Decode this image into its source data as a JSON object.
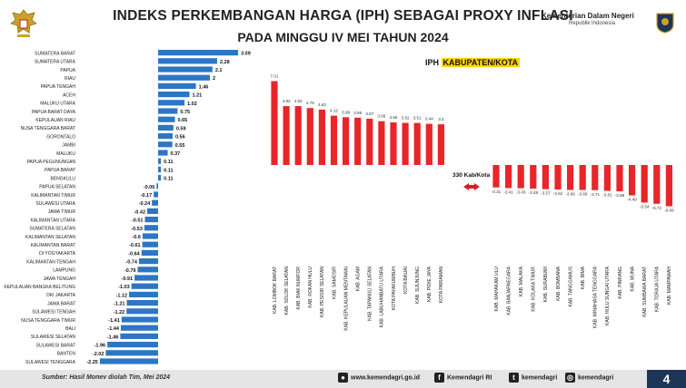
{
  "header": {
    "title_line1": "INDEKS PERKEMBANGAN HARGA (IPH) SEBAGAI PROXY INFLASI",
    "title_line2": "PADA MINGGU IV MEI TAHUN 2024",
    "org_name": "Kementerian Dalam Negeri",
    "org_sub": "Republik Indonesia"
  },
  "footer": {
    "source": "Sumber: Hasil Monev diolah Tim, Mei 2024",
    "website": "www.kemendagri.go.id",
    "facebook": "Kemendagri RI",
    "twitter": "kemendagri",
    "instagram": "kemendagri",
    "page_number": "4"
  },
  "colors": {
    "province_bar": "#2e75c4",
    "kabkota_bar": "#e8262a",
    "highlight": "#ffd500",
    "page_badge": "#1d3557"
  },
  "chart_data": [
    {
      "type": "bar",
      "orientation": "horizontal",
      "categories": [
        "SUMATERA BARAT",
        "SUMATERA UTARA",
        "PAPUA",
        "RIAU",
        "PAPUA TENGAH",
        "ACEH",
        "MALUKU UTARA",
        "PAPUA BARAT DAYA",
        "KEPULAUAN RIAU",
        "NUSA TENGGARA BARAT",
        "GORONTALO",
        "JAMBI",
        "MALUKU",
        "PAPUA PEGUNUNGAN",
        "PAPUA BARAT",
        "BENGKULU",
        "PAPUA SELATAN",
        "KALIMANTAN TIMUR",
        "SULAWESI UTARA",
        "JAWA TIMUR",
        "KALIMANTAN UTARA",
        "SUMATERA SELATAN",
        "KALIMANTAN SELATAN",
        "KALIMANTAN BARAT",
        "DI YOGYAKARTA",
        "KALIMANTAN TENGAH",
        "LAMPUNG",
        "JAWA TENGAH",
        "KEPULAUAN BANGKA BELITUNG",
        "DKI JAKARTA",
        "JAWA BARAT",
        "SULAWESI TENGAH",
        "NUSA TENGGARA TIMUR",
        "BALI",
        "SULAWESI SELATAN",
        "SULAWESI BARAT",
        "BANTEN",
        "SULAWESI TENGGARA"
      ],
      "values": [
        3.09,
        2.28,
        2.1,
        2,
        1.46,
        1.21,
        1.02,
        0.75,
        0.65,
        0.59,
        0.56,
        0.55,
        0.37,
        0.11,
        0.11,
        0.11,
        -0.06,
        -0.17,
        -0.24,
        -0.42,
        -0.51,
        -0.53,
        -0.6,
        -0.61,
        -0.64,
        -0.74,
        -0.79,
        -0.91,
        -1.03,
        -1.12,
        -1.21,
        -1.22,
        -1.41,
        -1.44,
        -1.46,
        -1.96,
        -2.02,
        -2.25
      ],
      "labels": [
        "3.09",
        "2.28",
        "2.1",
        "2",
        "1.46",
        "1.21",
        "1.02",
        "0.75",
        "0.65",
        "0.59",
        "0.56",
        "0.55",
        "0.37",
        "0.11",
        "0.11",
        "0.11",
        "-0.06",
        "-0.17",
        "-0.24",
        "-0.42",
        "-0.51",
        "-0.53",
        "-0.6",
        "-0.61",
        "-0.64",
        "-0.74",
        "-0.79",
        "-0.91",
        "-1.03",
        "-1.12",
        "-1.21",
        "-1.22",
        "-1.41",
        "-1.44",
        "-1.46",
        "-1.96",
        "-2.02",
        "-2.25"
      ],
      "grid": false
    },
    {
      "type": "bar",
      "title": "IPH",
      "title_highlight": "KABUPATEN/KOTA",
      "break_label": "330 Kab/Kota",
      "categories": [
        "KAB. LOMBOK BARAT",
        "KAB. SOLOK SELATAN",
        "KAB. BIAK NUMFOR",
        "KAB. ROKAN HULU",
        "KAB. PESISIR SELATAN",
        "KAB. SAMOSIR",
        "KAB. KEPULAUAN MENTAWAI",
        "KAB. AGAM",
        "KAB. TAPANULI SELATAN",
        "KAB. LABUHANBATU UTARA",
        "KOTA PAYAKUMBUH",
        "KOTA BINJAI",
        "KAB. SIJUNJUNG",
        "KAB. PIDIE JAYA",
        "KOTA PARIAMAN",
        "KAB. MAHAKAM ULU",
        "KAB. BANJARNEGARA",
        "KAB. MALAKA",
        "KAB. KOLAKA TIMUR",
        "KAB. SURABUMI",
        "KAB. BOMBANA",
        "KAB. TANGGAMUS",
        "KAB. BIMA",
        "KAB. MINAHASA TENGGARA",
        "KAB. HULU SUNGAI UTARA",
        "KAB. PINRANG",
        "KAB. MUNA",
        "KAB. SUMBAWA BARAT",
        "KAB. TORAJA UTARA",
        "KAB. MAMPAWAH"
      ],
      "values": [
        7.01,
        4.92,
        4.92,
        4.76,
        4.63,
        4.12,
        3.99,
        3.95,
        3.87,
        3.66,
        3.56,
        3.52,
        3.51,
        3.44,
        3.4,
        -3.31,
        -3.41,
        -3.43,
        -3.48,
        -3.57,
        -3.62,
        -3.68,
        -3.68,
        -3.71,
        -3.81,
        -3.88,
        -4.49,
        -5.54,
        -5.72,
        -6.08
      ],
      "labels": [
        "7.01",
        "4.92",
        "4.92",
        "4.76",
        "4.63",
        "4.12",
        "3.99",
        "3.95",
        "3.87",
        "3.66",
        "3.56",
        "3.52",
        "3.51",
        "3.44",
        "3.4",
        "-3.31",
        "-3.41",
        "-3.43",
        "-3.48",
        "-3.57",
        "-3.62",
        "-3.68",
        "-3.68",
        "-3.71",
        "-3.81",
        "-3.88",
        "-4.49",
        "-5.54",
        "-5.72",
        "-6.08"
      ],
      "grid": false
    }
  ]
}
